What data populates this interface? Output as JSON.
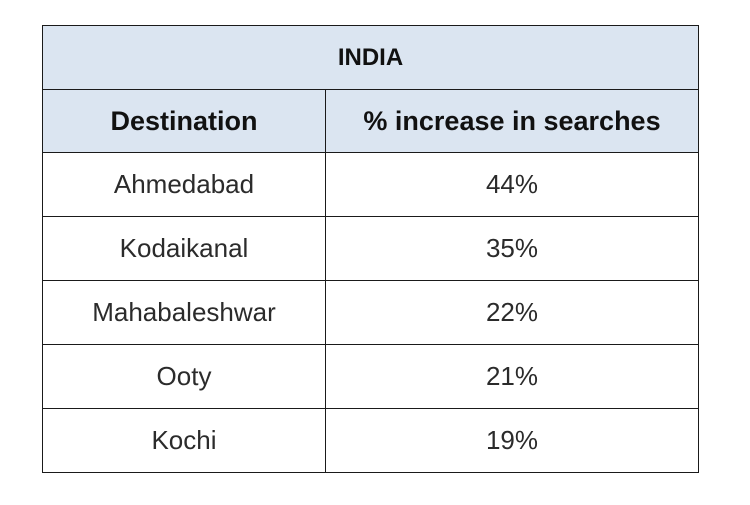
{
  "table": {
    "title": "INDIA",
    "headers": [
      "Destination",
      "% increase in searches"
    ],
    "rows": [
      {
        "destination": "Ahmedabad",
        "increase": "44%"
      },
      {
        "destination": "Kodaikanal",
        "increase": "35%"
      },
      {
        "destination": "Mahabaleshwar",
        "increase": "22%"
      },
      {
        "destination": "Ooty",
        "increase": "21%"
      },
      {
        "destination": "Kochi",
        "increase": "19%"
      }
    ]
  }
}
